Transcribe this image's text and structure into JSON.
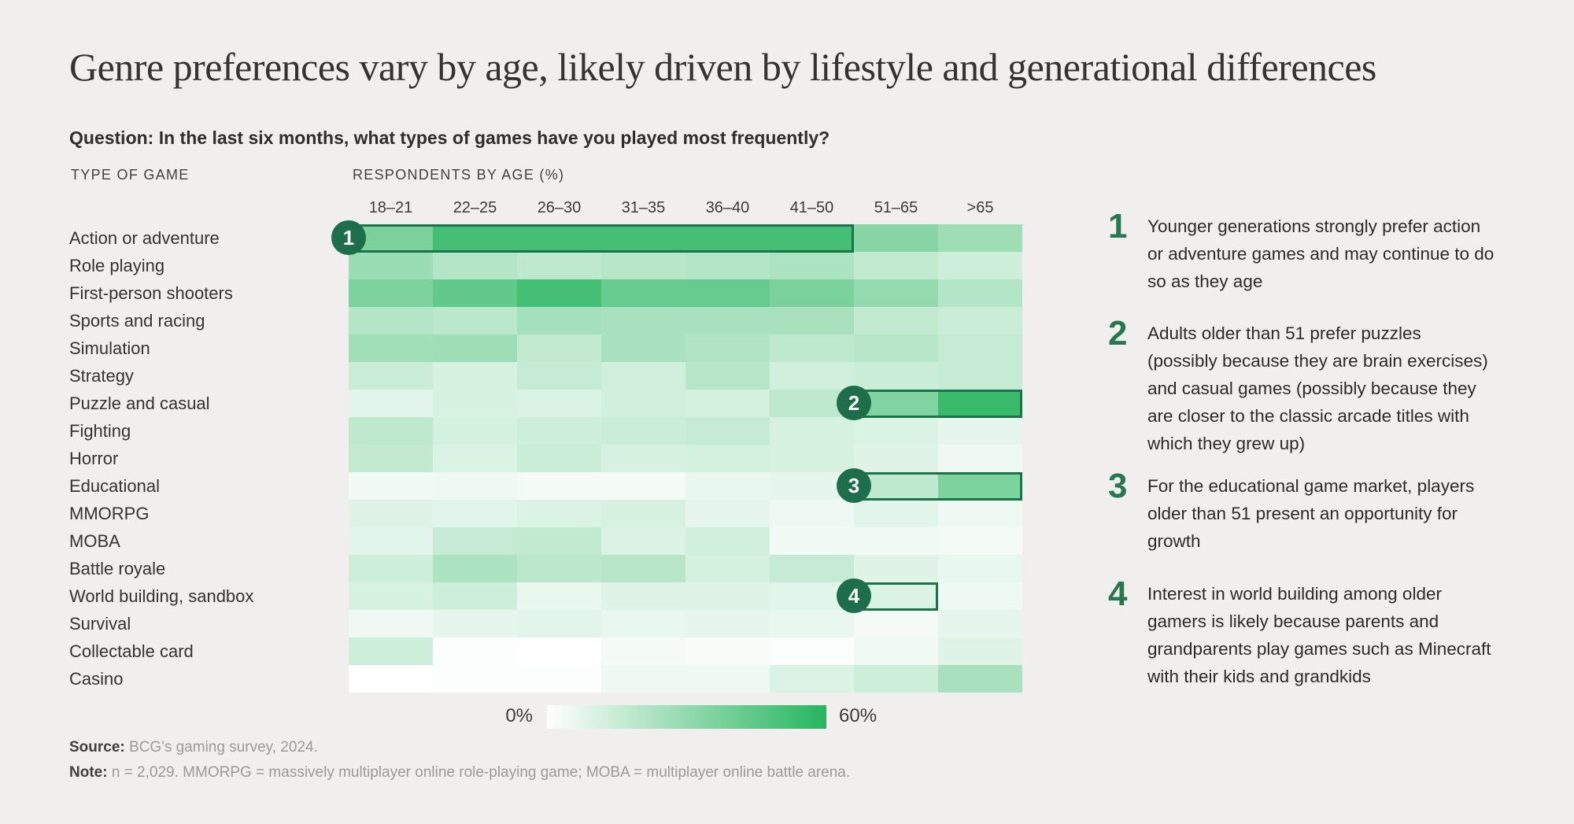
{
  "page": {
    "title": "Genre preferences vary by age, likely driven by lifestyle and generational differences",
    "question": "Question: In the last six months, what types of games have you played most frequently?",
    "left_header": "TYPE OF GAME",
    "chart_header": "RESPONDENTS BY AGE (%)"
  },
  "chart_data": {
    "type": "heatmap",
    "title": "Respondents by age (%) for each game genre",
    "columns": [
      "18–21",
      "22–25",
      "26–30",
      "31–35",
      "36–40",
      "41–50",
      "51–65",
      ">65"
    ],
    "rows": [
      {
        "label": "Action or adventure",
        "values": [
          37,
          52,
          52,
          52,
          52,
          52,
          33,
          27
        ]
      },
      {
        "label": "Role playing",
        "values": [
          28,
          21,
          18,
          20,
          21,
          23,
          17,
          14
        ]
      },
      {
        "label": "First-person shooters",
        "values": [
          36,
          44,
          52,
          42,
          42,
          37,
          30,
          21
        ]
      },
      {
        "label": "Sports and racing",
        "values": [
          21,
          19,
          25,
          24,
          24,
          24,
          17,
          15
        ]
      },
      {
        "label": "Simulation",
        "values": [
          26,
          27,
          17,
          24,
          22,
          18,
          20,
          16
        ]
      },
      {
        "label": "Strategy",
        "values": [
          15,
          11,
          16,
          13,
          20,
          13,
          15,
          16
        ]
      },
      {
        "label": "Puzzle and casual",
        "values": [
          8,
          11,
          10,
          13,
          12,
          18,
          35,
          55
        ]
      },
      {
        "label": "Fighting",
        "values": [
          18,
          12,
          14,
          15,
          16,
          11,
          10,
          7
        ]
      },
      {
        "label": "Horror",
        "values": [
          17,
          10,
          15,
          11,
          12,
          11,
          9,
          5
        ]
      },
      {
        "label": "Educational",
        "values": [
          4,
          5,
          3,
          3,
          6,
          7,
          18,
          36
        ]
      },
      {
        "label": "MMORPG",
        "values": [
          9,
          8,
          10,
          11,
          7,
          5,
          8,
          5
        ]
      },
      {
        "label": "MOBA",
        "values": [
          8,
          16,
          17,
          10,
          13,
          4,
          4,
          3
        ]
      },
      {
        "label": "Battle royale",
        "values": [
          14,
          23,
          19,
          20,
          12,
          16,
          9,
          6
        ]
      },
      {
        "label": "World building, sandbox",
        "values": [
          11,
          14,
          6,
          9,
          9,
          8,
          10,
          5
        ]
      },
      {
        "label": "Survival",
        "values": [
          5,
          7,
          8,
          6,
          7,
          6,
          3,
          7
        ]
      },
      {
        "label": "Collectable card",
        "values": [
          14,
          1,
          0,
          3,
          2,
          1,
          4,
          9
        ]
      },
      {
        "label": "Casino",
        "values": [
          0,
          1,
          1,
          5,
          5,
          10,
          14,
          24
        ]
      }
    ],
    "scale": {
      "min": 0,
      "max": 60,
      "min_label": "0%",
      "max_label": "60%",
      "min_color": "#ffffff",
      "max_color": "#27b55e"
    },
    "legend_position": "bottom-center",
    "callouts": [
      {
        "number": "1",
        "row_label": "Action or adventure",
        "row_index": 0,
        "col_start": 0,
        "col_end": 5
      },
      {
        "number": "2",
        "row_label": "Puzzle and casual",
        "row_index": 6,
        "col_start": 6,
        "col_end": 7
      },
      {
        "number": "3",
        "row_label": "Educational",
        "row_index": 9,
        "col_start": 6,
        "col_end": 7
      },
      {
        "number": "4",
        "row_label": "World building, sandbox",
        "row_index": 13,
        "col_start": 6,
        "col_end": 6
      }
    ]
  },
  "annotations": [
    {
      "number": "1",
      "text": "Younger generations strongly prefer action or adventure games and may continue to do so as they age"
    },
    {
      "number": "2",
      "text": "Adults older than 51 prefer puzzles (possibly because they are brain exercises) and casual games (possibly because they are closer to the classic arcade titles with which they grew up)"
    },
    {
      "number": "3",
      "text": "For the educational game market, players older than 51 present an opportunity for growth"
    },
    {
      "number": "4",
      "text": "Interest in world building among older gamers is likely because parents and grandparents play games such as Minecraft with their kids and grandkids"
    }
  ],
  "footer": {
    "source_label": "Source:",
    "source_text": " BCG's gaming survey, 2024.",
    "note_label": "Note:",
    "note_text": " n = 2,029. MMORPG = massively multiplayer online role-playing game; MOBA = multiplayer online battle arena."
  },
  "colors": {
    "background": "#f0efed",
    "heat_min": "#ffffff",
    "heat_max": "#27b55e",
    "callout_border_green": "#1b734a",
    "callout_badge_green": "#1c6f4a",
    "annotation_number_green": "#28784f",
    "title_text": "#333333",
    "muted_text": "#9b9a98"
  }
}
